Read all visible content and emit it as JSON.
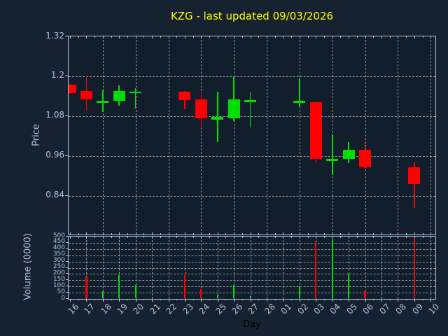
{
  "chart_data": {
    "type": "candlestick",
    "title": "KZG - last updated 09/03/2026",
    "xlabel": "Day",
    "legend": "none",
    "grid": {
      "style": "dashed",
      "price_vertical_every_n_days": 2,
      "volume_vertical_every_n_days": 1
    },
    "price_axis": {
      "label": "Price",
      "ticks": [
        1.32,
        1.2,
        1.08,
        0.96,
        0.84
      ],
      "tick_labels": [
        "1.32",
        "1.2",
        "1.08",
        "0.96",
        "0.84"
      ],
      "ylim": [
        0.724,
        1.32
      ]
    },
    "volume_axis": {
      "label": "Volume (0000)",
      "ticks": [
        0,
        50,
        100,
        150,
        200,
        250,
        300,
        350,
        400,
        450,
        500
      ],
      "tick_labels": [
        "0",
        "50",
        "100",
        "150",
        "200",
        "250",
        "300",
        "350",
        "400",
        "450",
        "500"
      ],
      "ylim": [
        0,
        500
      ]
    },
    "days": [
      "16",
      "17",
      "18",
      "19",
      "20",
      "21",
      "22",
      "23",
      "24",
      "25",
      "26",
      "27",
      "28",
      "01",
      "02",
      "03",
      "04",
      "05",
      "06",
      "07",
      "08",
      "09",
      "10"
    ],
    "no_data_days": [
      "21",
      "22",
      "28",
      "01",
      "07",
      "08",
      "10"
    ],
    "candles": [
      {
        "day": "16",
        "open": 1.175,
        "high": 1.176,
        "low": 1.148,
        "close": 1.149,
        "volume": null,
        "clipped_at_left_edge": true
      },
      {
        "day": "17",
        "open": 1.155,
        "high": 1.2,
        "low": 1.098,
        "close": 1.13,
        "volume": 180
      },
      {
        "day": "18",
        "open": 1.122,
        "high": 1.158,
        "low": 1.092,
        "close": 1.126,
        "volume": 60
      },
      {
        "day": "19",
        "open": 1.126,
        "high": 1.172,
        "low": 1.112,
        "close": 1.156,
        "volume": 190
      },
      {
        "day": "20",
        "open": 1.152,
        "high": 1.165,
        "low": 1.103,
        "close": 1.154,
        "volume": 110
      },
      {
        "day": "23",
        "open": 1.154,
        "high": 1.155,
        "low": 1.1,
        "close": 1.128,
        "volume": 190
      },
      {
        "day": "24",
        "open": 1.13,
        "high": 1.154,
        "low": 1.049,
        "close": 1.074,
        "volume": 80
      },
      {
        "day": "25",
        "open": 1.069,
        "high": 1.154,
        "low": 1.001,
        "close": 1.077,
        "volume": 35
      },
      {
        "day": "26",
        "open": 1.074,
        "high": 1.198,
        "low": 1.066,
        "close": 1.13,
        "volume": 115
      },
      {
        "day": "27",
        "open": 1.126,
        "high": 1.151,
        "low": 1.046,
        "close": 1.128,
        "volume": 20
      },
      {
        "day": "02",
        "open": 1.124,
        "high": 1.194,
        "low": 1.11,
        "close": 1.126,
        "volume": 100
      },
      {
        "day": "03",
        "open": 1.121,
        "high": 1.121,
        "low": 0.939,
        "close": 0.951,
        "volume": 455
      },
      {
        "day": "04",
        "open": 0.949,
        "high": 1.026,
        "low": 0.904,
        "close": 0.951,
        "volume": 480
      },
      {
        "day": "05",
        "open": 0.951,
        "high": 1.002,
        "low": 0.939,
        "close": 0.979,
        "volume": 200
      },
      {
        "day": "06",
        "open": 0.979,
        "high": 1.002,
        "low": 0.922,
        "close": 0.926,
        "volume": 65
      },
      {
        "day": "09",
        "open": 0.926,
        "high": 0.94,
        "low": 0.805,
        "close": 0.875,
        "volume": 490
      }
    ],
    "colors": {
      "up": "#00e000",
      "down": "#ff0000",
      "title": "#ffff00",
      "axis": "#a9c4e1",
      "grid": "#b3bac2",
      "figure_bg": "#16222f",
      "plot_bg": "#121e2b",
      "xlabel_color": "#000000"
    }
  }
}
